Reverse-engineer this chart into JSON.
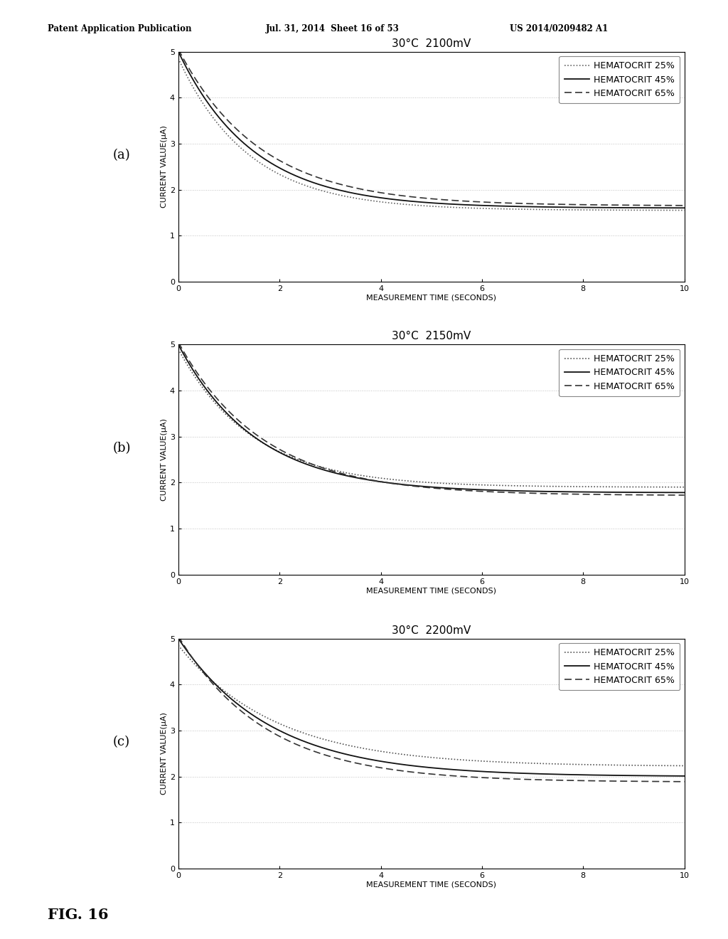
{
  "header_left": "Patent Application Publication",
  "header_mid": "Jul. 31, 2014  Sheet 16 of 53",
  "header_right": "US 2014/0209482 A1",
  "footer": "FIG. 16",
  "panels": [
    {
      "label": "(a)",
      "title": "30°C  2100mV",
      "xlabel": "MEASUREMENT TIME (SECONDS)",
      "ylabel": "CURRENT VALUE(μA)",
      "xlim": [
        0,
        10
      ],
      "ylim": [
        0,
        5
      ],
      "xticks": [
        0,
        2,
        4,
        6,
        8,
        10
      ],
      "yticks": [
        0,
        1,
        2,
        3,
        4,
        5
      ],
      "series": [
        {
          "label": "HEMATOCRIT 25%",
          "linestyle": "densely_dotted",
          "color": "#666666",
          "k": 0.72,
          "y0": 4.85,
          "yinf": 1.55
        },
        {
          "label": "HEMATOCRIT 45%",
          "linestyle": "solid",
          "color": "#111111",
          "k": 0.68,
          "y0": 5.0,
          "yinf": 1.6
        },
        {
          "label": "HEMATOCRIT 65%",
          "linestyle": "dashed",
          "color": "#333333",
          "k": 0.62,
          "y0": 5.05,
          "yinf": 1.65
        }
      ]
    },
    {
      "label": "(b)",
      "title": "30°C  2150mV",
      "xlabel": "MEASUREMENT TIME (SECONDS)",
      "ylabel": "CURRENT VALUE(μA)",
      "xlim": [
        0,
        10
      ],
      "ylim": [
        0,
        5
      ],
      "xticks": [
        0,
        2,
        4,
        6,
        8,
        10
      ],
      "yticks": [
        0,
        1,
        2,
        3,
        4,
        5
      ],
      "series": [
        {
          "label": "HEMATOCRIT 25%",
          "linestyle": "densely_dotted",
          "color": "#555555",
          "k": 0.68,
          "y0": 4.9,
          "yinf": 1.9
        },
        {
          "label": "HEMATOCRIT 45%",
          "linestyle": "solid",
          "color": "#111111",
          "k": 0.65,
          "y0": 5.0,
          "yinf": 1.78
        },
        {
          "label": "HEMATOCRIT 65%",
          "linestyle": "dashed",
          "color": "#333333",
          "k": 0.6,
          "y0": 5.05,
          "yinf": 1.72
        }
      ]
    },
    {
      "label": "(c)",
      "title": "30°C  2200mV",
      "xlabel": "MEASUREMENT TIME (SECONDS)",
      "ylabel": "CURRENT VALUE(μA)",
      "xlim": [
        0,
        10
      ],
      "ylim": [
        0,
        5
      ],
      "xticks": [
        0,
        2,
        4,
        6,
        8,
        10
      ],
      "yticks": [
        0,
        1,
        2,
        3,
        4,
        5
      ],
      "series": [
        {
          "label": "HEMATOCRIT 25%",
          "linestyle": "densely_dotted",
          "color": "#555555",
          "k": 0.52,
          "y0": 4.85,
          "yinf": 2.22
        },
        {
          "label": "HEMATOCRIT 45%",
          "linestyle": "solid",
          "color": "#111111",
          "k": 0.55,
          "y0": 5.0,
          "yinf": 2.0
        },
        {
          "label": "HEMATOCRIT 65%",
          "linestyle": "dashed",
          "color": "#333333",
          "k": 0.58,
          "y0": 5.05,
          "yinf": 1.88
        }
      ]
    }
  ],
  "background_color": "#ffffff",
  "grid_color": "#999999",
  "grid_alpha": 0.6,
  "legend_fontsize": 9,
  "axis_fontsize": 8,
  "title_fontsize": 11
}
